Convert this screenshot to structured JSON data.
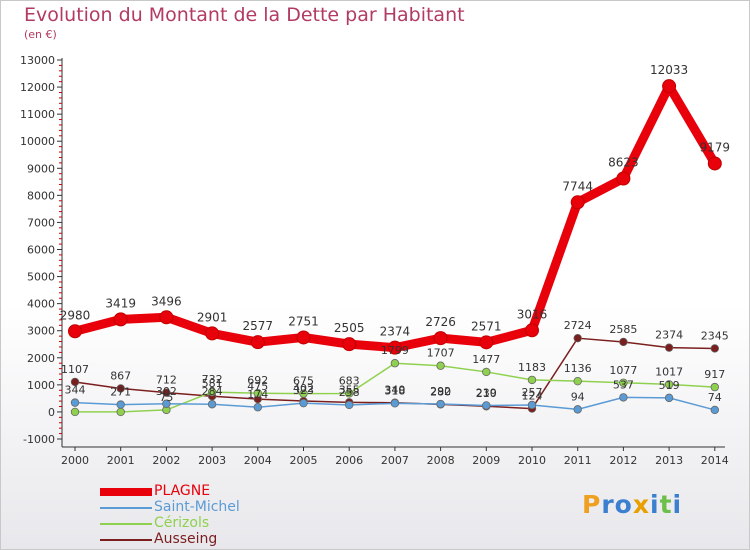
{
  "chart_data": {
    "type": "line",
    "title": "Evolution du Montant de la Dette par Habitant",
    "subtitle": "(en €)",
    "xlabel": "",
    "ylabel": "",
    "categories": [
      "2000",
      "2001",
      "2002",
      "2003",
      "2004",
      "2005",
      "2006",
      "2007",
      "2008",
      "2009",
      "2010",
      "2011",
      "2012",
      "2013",
      "2014"
    ],
    "ylim": [
      -1000,
      13000
    ],
    "yticks": [
      -1000,
      0,
      1000,
      2000,
      3000,
      4000,
      5000,
      6000,
      7000,
      8000,
      9000,
      10000,
      11000,
      12000,
      13000
    ],
    "grid": false,
    "legend_position": "bottom-left",
    "series": [
      {
        "name": "PLAGNE",
        "color": "#e8000b",
        "values": [
          2980,
          3419,
          3496,
          2901,
          2577,
          2751,
          2505,
          2374,
          2726,
          2571,
          3016,
          7744,
          8623,
          12033,
          9179
        ],
        "labels": [
          "2980",
          "3419",
          "3496",
          "2901",
          "2577",
          "2751",
          "2505",
          "2374",
          "2726",
          "2571",
          "3016",
          "7744",
          "8623",
          "12033",
          "9179"
        ]
      },
      {
        "name": "Saint-Michel",
        "color": "#5b9bd5",
        "values": [
          344,
          271,
          302,
          284,
          174,
          323,
          258,
          318,
          292,
          239,
          257,
          94,
          537,
          519,
          74
        ],
        "labels": [
          "344",
          "271",
          "302",
          "284",
          "174",
          "323",
          "258",
          "318",
          "292",
          "239",
          "257",
          "94",
          "537",
          "519",
          "74"
        ]
      },
      {
        "name": "Cérizols",
        "color": "#8fd14f",
        "values": [
          0,
          0,
          75,
          732,
          692,
          675,
          683,
          1799,
          1707,
          1477,
          1183,
          1136,
          1077,
          1017,
          917
        ],
        "labels": [
          "",
          "",
          "75",
          "732",
          "692",
          "675",
          "683",
          "1799",
          "1707",
          "1477",
          "1183",
          "1136",
          "1077",
          "1017",
          "917"
        ]
      },
      {
        "name": "Ausseing",
        "color": "#7b1e1e",
        "values": [
          1107,
          867,
          712,
          581,
          475,
          402,
          355,
          340,
          280,
          210,
          124,
          2724,
          2585,
          2374,
          2345
        ],
        "labels": [
          "1107",
          "867",
          "712",
          "581",
          "475",
          "402",
          "355",
          "340",
          "280",
          "210",
          "124",
          "2724",
          "2585",
          "2374",
          "2345"
        ]
      }
    ]
  },
  "branding": {
    "logo_letters": [
      "P",
      "r",
      "o",
      "x",
      "i",
      "t",
      "i"
    ],
    "logo_colors": [
      "#f0a020",
      "#3a7fd0",
      "#3a7fd0",
      "#e8a000",
      "#3a7fd0",
      "#6cc04a",
      "#3a7fd0"
    ]
  }
}
